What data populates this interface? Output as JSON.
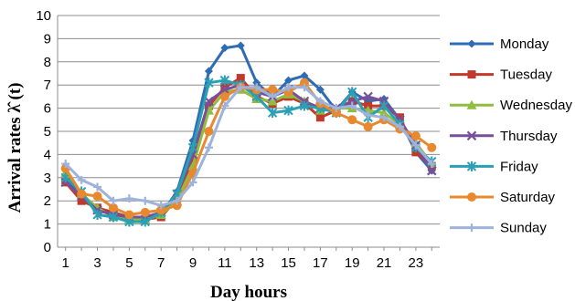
{
  "chart_data": {
    "type": "line",
    "title": "",
    "xlabel": "Day hours",
    "ylabel": "Arrival rates λ̂ (t)",
    "x": [
      1,
      2,
      3,
      4,
      5,
      6,
      7,
      8,
      9,
      10,
      11,
      12,
      13,
      14,
      15,
      16,
      17,
      18,
      19,
      20,
      21,
      22,
      23,
      24
    ],
    "x_tick_labels": [
      "1",
      "3",
      "5",
      "7",
      "9",
      "11",
      "13",
      "15",
      "17",
      "19",
      "21",
      "23"
    ],
    "x_tick_values": [
      1,
      3,
      5,
      7,
      9,
      11,
      13,
      15,
      17,
      19,
      21,
      23
    ],
    "ylim": [
      0,
      10
    ],
    "y_tick_labels": [
      "0",
      "1",
      "2",
      "3",
      "4",
      "5",
      "6",
      "7",
      "8",
      "9",
      "10"
    ],
    "grid": "horizontal",
    "legend_position": "right",
    "series": [
      {
        "name": "Monday",
        "color": "#2e6db4",
        "marker": "diamond",
        "values": [
          2.9,
          2.2,
          1.6,
          1.4,
          1.3,
          1.3,
          1.4,
          2.4,
          4.6,
          7.6,
          8.6,
          8.7,
          7.1,
          6.5,
          7.2,
          7.4,
          6.8,
          5.9,
          6.7,
          6.3,
          6.4,
          5.5,
          4.1,
          3.3
        ]
      },
      {
        "name": "Tuesday",
        "color": "#c0392b",
        "marker": "square",
        "values": [
          2.8,
          2.0,
          1.7,
          1.5,
          1.3,
          1.2,
          1.3,
          2.1,
          3.8,
          6.1,
          6.9,
          7.3,
          6.5,
          6.2,
          6.5,
          6.2,
          5.6,
          5.9,
          6.3,
          6.1,
          6.1,
          5.6,
          4.1,
          3.5
        ]
      },
      {
        "name": "Wednesday",
        "color": "#8fbd3f",
        "marker": "triangle",
        "values": [
          3.2,
          2.3,
          1.7,
          1.3,
          1.2,
          1.2,
          1.4,
          2.0,
          3.5,
          5.9,
          6.7,
          6.8,
          6.4,
          6.3,
          6.6,
          6.3,
          5.9,
          6.0,
          6.0,
          5.9,
          5.8,
          5.3,
          4.5,
          3.6
        ]
      },
      {
        "name": "Thursday",
        "color": "#7a4f9a",
        "marker": "x",
        "values": [
          2.8,
          2.2,
          1.6,
          1.4,
          1.3,
          1.3,
          1.5,
          2.3,
          4.0,
          6.3,
          6.8,
          7.0,
          6.7,
          6.5,
          6.8,
          6.3,
          6.0,
          6.0,
          6.3,
          6.5,
          6.3,
          5.5,
          4.4,
          3.3
        ]
      },
      {
        "name": "Friday",
        "color": "#2aa0b5",
        "marker": "asterisk",
        "values": [
          3.0,
          2.4,
          1.4,
          1.3,
          1.1,
          1.1,
          1.5,
          2.3,
          4.3,
          7.1,
          7.2,
          7.0,
          6.5,
          5.8,
          5.9,
          6.1,
          6.0,
          5.8,
          6.7,
          5.6,
          6.1,
          5.3,
          4.3,
          3.7
        ]
      },
      {
        "name": "Saturday",
        "color": "#e8892f",
        "marker": "circle",
        "values": [
          3.4,
          2.3,
          2.2,
          1.7,
          1.4,
          1.5,
          1.6,
          1.8,
          3.2,
          5.0,
          6.5,
          6.9,
          6.8,
          6.8,
          6.7,
          7.1,
          6.2,
          5.8,
          5.5,
          5.2,
          5.5,
          5.1,
          4.8,
          4.3
        ]
      },
      {
        "name": "Sunday",
        "color": "#9db3dc",
        "marker": "plus",
        "values": [
          3.6,
          2.9,
          2.6,
          2.0,
          2.1,
          2.0,
          1.8,
          2.0,
          2.8,
          4.3,
          6.1,
          6.9,
          6.9,
          6.5,
          6.9,
          6.9,
          6.3,
          6.0,
          6.1,
          5.7,
          5.6,
          5.2,
          4.4,
          3.6
        ]
      }
    ]
  }
}
